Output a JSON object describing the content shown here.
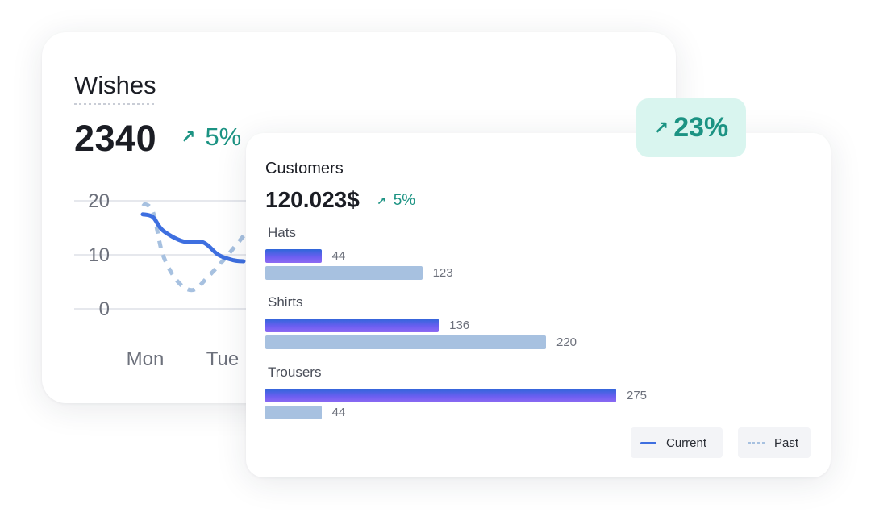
{
  "wishes": {
    "title": "Wishes",
    "value": "2340",
    "delta": "5%"
  },
  "customers": {
    "title": "Customers",
    "value": "120.023$",
    "delta": "5%"
  },
  "badge": {
    "text": "23%"
  },
  "legend": {
    "current": "Current",
    "past": "Past"
  },
  "colors": {
    "accent_green": "#1c9383",
    "badge_bg": "#d9f5ef",
    "current": "#3e6fe0",
    "current_gradient_end": "#8e6af3",
    "past": "#a7c1e0"
  },
  "chart_data": [
    {
      "type": "line",
      "title": "",
      "yticks": [
        0,
        10,
        20
      ],
      "ylim": [
        0,
        20
      ],
      "categories": [
        "Mon",
        "Tue"
      ],
      "legend": "none",
      "grid": true,
      "series": [
        {
          "name": "Current",
          "style": "solid",
          "x": [
            0,
            0.1,
            0.2,
            0.4,
            0.6,
            0.75,
            0.9,
            1.0
          ],
          "values": [
            17.5,
            17,
            14.5,
            12.5,
            12.3,
            10,
            9,
            8.8
          ]
        },
        {
          "name": "Past",
          "style": "dotted",
          "x": [
            0,
            0.1,
            0.2,
            0.35,
            0.5,
            0.65,
            0.8,
            1.0
          ],
          "values": [
            19.5,
            18,
            10,
            5,
            3.5,
            6,
            9,
            13.5
          ]
        }
      ]
    },
    {
      "type": "bar",
      "orientation": "horizontal",
      "title": "",
      "categories": [
        "Hats",
        "Shirts",
        "Trousers"
      ],
      "legend": "bottom-right",
      "series": [
        {
          "name": "Current",
          "values": [
            44,
            136,
            275
          ]
        },
        {
          "name": "Past",
          "values": [
            123,
            220,
            44
          ]
        }
      ]
    }
  ]
}
